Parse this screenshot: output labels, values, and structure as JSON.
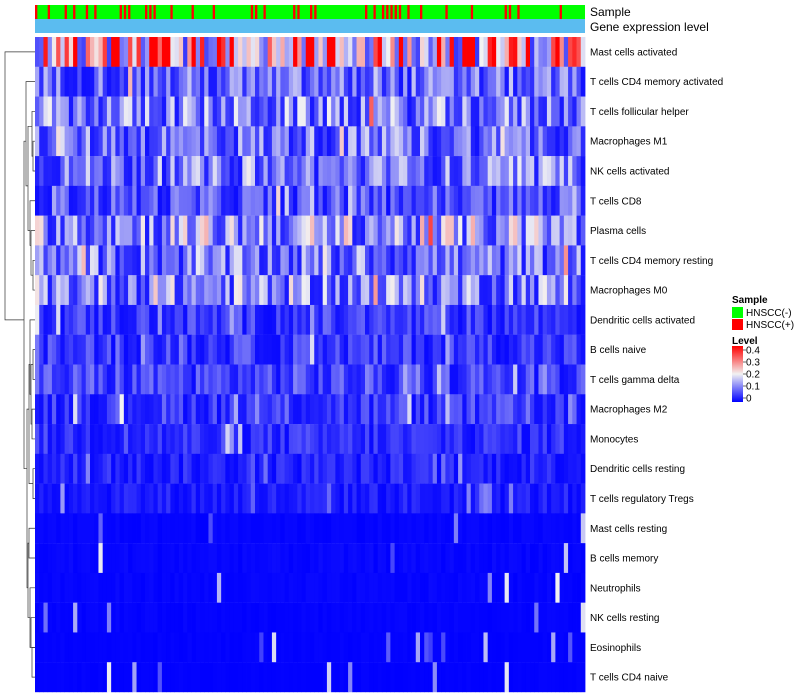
{
  "chart_data": {
    "type": "heatmap",
    "title": "",
    "annotation_tracks": [
      "Sample",
      "Gene expression level"
    ],
    "rows": [
      "Mast cells activated",
      "T cells CD4 memory activated",
      "T cells follicular helper",
      "Macrophages M1",
      "NK cells activated",
      "T cells CD8",
      "Plasma cells",
      "T cells CD4 memory resting",
      "Macrophages M0",
      "Dendritic cells activated",
      "B cells naive",
      "T cells gamma delta",
      "Macrophages M2",
      "Monocytes",
      "Dendritic cells resting",
      "T cells regulatory  Tregs",
      "Mast cells resting",
      "B cells memory",
      "Neutrophils",
      "NK cells resting",
      "Eosinophils",
      "T cells CD4 naive"
    ],
    "row_mean_levels": [
      0.29,
      0.09,
      0.11,
      0.1,
      0.1,
      0.07,
      0.14,
      0.1,
      0.12,
      0.05,
      0.05,
      0.06,
      0.05,
      0.04,
      0.03,
      0.025,
      0.008,
      0.01,
      0.008,
      0.006,
      0.004,
      0.003
    ],
    "n_samples": 130,
    "color_scale": {
      "min": 0,
      "max": 0.4,
      "ticks": [
        "0.4",
        "0.3",
        "0.2",
        "0.1",
        "0"
      ],
      "low_color": "#0000ff",
      "mid_color": "#f2f2f2",
      "high_color": "#ff0000"
    },
    "legend": {
      "sample_title": "Sample",
      "sample_items": [
        {
          "label": "HNSCC(-)",
          "color": "#00ff00"
        },
        {
          "label": "HNSCC(+)",
          "color": "#ff0000"
        }
      ],
      "level_title": "Level"
    },
    "gene_expression_color": "#5bbcf0"
  }
}
